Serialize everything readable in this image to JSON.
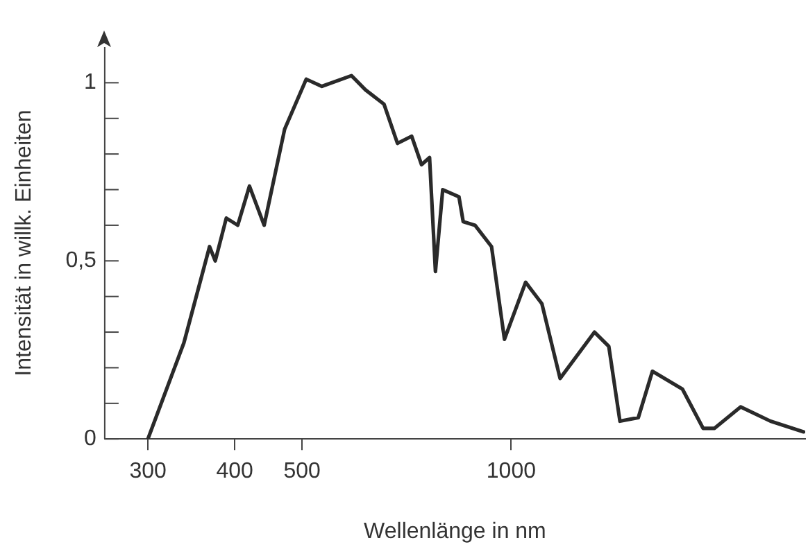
{
  "chart_data": {
    "type": "line",
    "xlabel": "Wellenlänge in nm",
    "ylabel": "Intensität in willk. Einheiten",
    "log": "x",
    "grid": false,
    "legend": false,
    "marker": "none",
    "line_style": "solid",
    "xlim": [
      260,
      2650
    ],
    "xticks": [
      300,
      400,
      500,
      1000
    ],
    "ylim": [
      0,
      1.1
    ],
    "yticks": [
      0,
      {
        "value": 0.1,
        "label": null
      },
      {
        "value": 0.2,
        "label": null
      },
      {
        "value": 0.3,
        "label": null
      },
      {
        "value": 0.4,
        "label": null
      },
      {
        "value": 0.5,
        "label": "0,5"
      },
      {
        "value": 0.6,
        "label": null
      },
      {
        "value": 0.7,
        "label": null
      },
      {
        "value": 0.8,
        "label": null
      },
      {
        "value": 0.9,
        "label": null
      },
      1
    ],
    "series": [
      {
        "color": "#2a2a2a",
        "x": [
          300,
          338,
          368,
          375,
          389,
          404,
          420,
          441,
          472,
          507,
          534,
          589,
          617,
          656,
          686,
          719,
          743,
          763,
          778,
          797,
          841,
          853,
          887,
          937,
          978,
          1049,
          1107,
          1176,
          1318,
          1382,
          1434,
          1524,
          1597,
          1764,
          1889,
          1962,
          2139,
          2362,
          2636
        ],
        "values": [
          0,
          0.27,
          0.54,
          0.5,
          0.62,
          0.6,
          0.71,
          0.6,
          0.87,
          1.01,
          0.99,
          1.02,
          0.98,
          0.94,
          0.83,
          0.85,
          0.77,
          0.79,
          0.47,
          0.7,
          0.68,
          0.61,
          0.6,
          0.54,
          0.28,
          0.44,
          0.38,
          0.17,
          0.3,
          0.26,
          0.05,
          0.06,
          0.19,
          0.14,
          0.03,
          0.03,
          0.09,
          0.05,
          0.02
        ]
      }
    ]
  }
}
